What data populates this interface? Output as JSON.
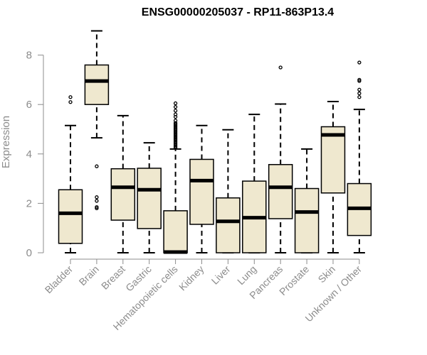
{
  "chart_data": {
    "type": "boxplot",
    "title": "ENSG00000205037 - RP11-863P13.4",
    "xlabel": "",
    "ylabel": "Expression",
    "ylim": [
      0,
      9
    ],
    "yticks": [
      0,
      2,
      4,
      6,
      8
    ],
    "grid": false,
    "colors": {
      "box_fill": "#efe8cf",
      "stroke": "#000000",
      "axis": "#8c8c8c"
    },
    "categories": [
      "Bladder",
      "Brain",
      "Breast",
      "Gastric",
      "Hematopoietic cells",
      "Kidney",
      "Liver",
      "Lung",
      "Pancreas",
      "Prostate",
      "Skin",
      "Unknown / Other"
    ],
    "boxes": [
      {
        "label": "Bladder",
        "whisker_low": 0.0,
        "q1": 0.38,
        "median": 1.6,
        "q3": 2.55,
        "whisker_high": 5.15,
        "outliers": [
          6.1,
          6.3
        ]
      },
      {
        "label": "Brain",
        "whisker_low": 4.65,
        "q1": 6.0,
        "median": 6.95,
        "q3": 7.6,
        "whisker_high": 8.98,
        "outliers": [
          3.5,
          2.25,
          2.1,
          1.85,
          1.8
        ]
      },
      {
        "label": "Breast",
        "whisker_low": 0.0,
        "q1": 1.32,
        "median": 2.65,
        "q3": 3.4,
        "whisker_high": 5.55,
        "outliers": []
      },
      {
        "label": "Gastric",
        "whisker_low": 0.0,
        "q1": 0.98,
        "median": 2.55,
        "q3": 3.42,
        "whisker_high": 4.45,
        "outliers": []
      },
      {
        "label": "Hematopoietic cells",
        "whisker_low": 0.0,
        "q1": 0.0,
        "median": 0.03,
        "q3": 1.7,
        "whisker_high": 4.2,
        "outliers": [
          4.25,
          4.3,
          4.35,
          4.4,
          4.45,
          4.5,
          4.55,
          4.6,
          4.65,
          4.7,
          4.75,
          4.8,
          4.85,
          4.9,
          4.95,
          5.0,
          5.05,
          5.1,
          5.15,
          5.2,
          5.25,
          5.35,
          5.5,
          5.6,
          5.75,
          5.9,
          6.05
        ]
      },
      {
        "label": "Kidney",
        "whisker_low": 0.0,
        "q1": 1.15,
        "median": 2.92,
        "q3": 3.78,
        "whisker_high": 5.15,
        "outliers": []
      },
      {
        "label": "Liver",
        "whisker_low": 0.0,
        "q1": 0.0,
        "median": 1.27,
        "q3": 2.22,
        "whisker_high": 4.98,
        "outliers": []
      },
      {
        "label": "Lung",
        "whisker_low": 0.0,
        "q1": 0.0,
        "median": 1.42,
        "q3": 2.9,
        "whisker_high": 5.6,
        "outliers": []
      },
      {
        "label": "Pancreas",
        "whisker_low": 0.0,
        "q1": 1.38,
        "median": 2.65,
        "q3": 3.57,
        "whisker_high": 6.02,
        "outliers": [
          7.5
        ]
      },
      {
        "label": "Prostate",
        "whisker_low": 0.0,
        "q1": 0.0,
        "median": 1.65,
        "q3": 2.6,
        "whisker_high": 4.2,
        "outliers": []
      },
      {
        "label": "Skin",
        "whisker_low": 0.0,
        "q1": 2.42,
        "median": 4.77,
        "q3": 5.1,
        "whisker_high": 6.12,
        "outliers": []
      },
      {
        "label": "Unknown / Other",
        "whisker_low": 0.0,
        "q1": 0.7,
        "median": 1.8,
        "q3": 2.8,
        "whisker_high": 5.8,
        "outliers": [
          6.3,
          6.45,
          6.6,
          6.95,
          7.0,
          7.7
        ]
      }
    ]
  }
}
